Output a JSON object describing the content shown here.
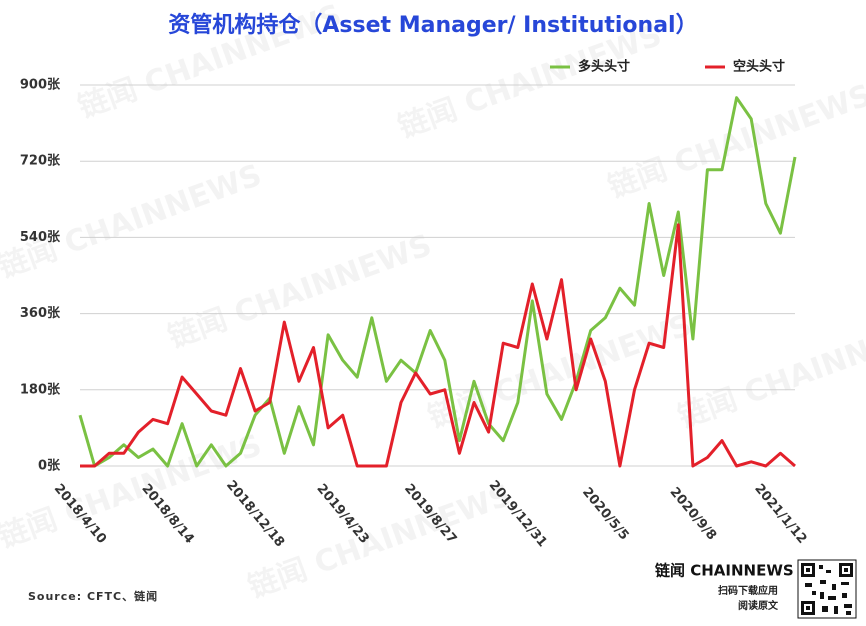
{
  "chart_data": {
    "type": "line",
    "title": "资管机构持仓（Asset Manager/ Institutional）",
    "categories": [
      "2018/4/10",
      null,
      null,
      null,
      null,
      null,
      "2018/8/14",
      null,
      null,
      null,
      null,
      null,
      "2018/12/18",
      null,
      null,
      null,
      null,
      null,
      "2019/4/23",
      null,
      null,
      null,
      null,
      null,
      "2019/8/27",
      null,
      null,
      null,
      null,
      null,
      "2019/12/31",
      null,
      null,
      null,
      null,
      null,
      "2020/5/5",
      null,
      null,
      null,
      null,
      null,
      "2020/9/8",
      null,
      null,
      null,
      null,
      null,
      "2021/1/12",
      null
    ],
    "series": [
      {
        "name": "多头头寸",
        "color": "#7ac143",
        "values": [
          120,
          0,
          20,
          50,
          20,
          40,
          0,
          100,
          0,
          50,
          0,
          30,
          120,
          160,
          30,
          140,
          50,
          310,
          250,
          210,
          350,
          200,
          250,
          220,
          320,
          250,
          60,
          200,
          100,
          60,
          150,
          390,
          170,
          110,
          200,
          320,
          350,
          420,
          380,
          620,
          450,
          600,
          300,
          700,
          700,
          870,
          820,
          620,
          550,
          730
        ]
      },
      {
        "name": "空头头寸",
        "color": "#e3202a",
        "values": [
          0,
          0,
          30,
          30,
          80,
          110,
          100,
          210,
          170,
          130,
          120,
          230,
          130,
          150,
          340,
          200,
          280,
          90,
          120,
          0,
          0,
          0,
          150,
          220,
          170,
          180,
          30,
          150,
          80,
          290,
          280,
          430,
          300,
          440,
          180,
          300,
          200,
          0,
          180,
          290,
          280,
          570,
          0,
          20,
          60,
          0,
          10,
          0,
          30,
          0
        ]
      }
    ],
    "ylim": [
      0,
      900
    ],
    "yticks": [
      {
        "value": 0,
        "label": "0张"
      },
      {
        "value": 180,
        "label": "180张"
      },
      {
        "value": 360,
        "label": "360张"
      },
      {
        "value": 540,
        "label": "540张"
      },
      {
        "value": 720,
        "label": "720张"
      },
      {
        "value": 900,
        "label": "900张"
      }
    ],
    "grid": true,
    "legend": "top-right",
    "watermark": "链闻 CHAINNEWS",
    "source": "Source: CFTC、链闻",
    "logo": "链闻 CHAINNEWS",
    "logo_line1": "扫码下载应用",
    "logo_line2": "阅读原文"
  }
}
